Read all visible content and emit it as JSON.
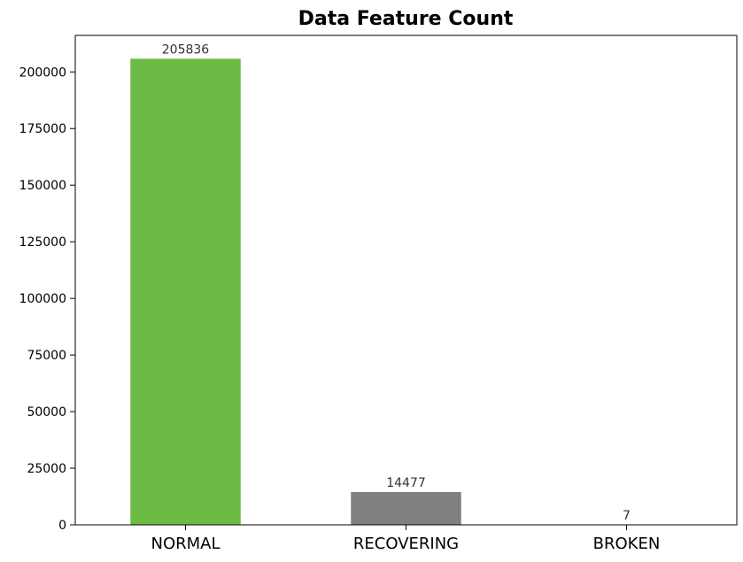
{
  "chart_data": {
    "type": "bar",
    "title": "Data Feature Count",
    "categories": [
      "NORMAL",
      "RECOVERING",
      "BROKEN"
    ],
    "values": [
      205836,
      14477,
      7
    ],
    "data_labels": [
      "205836",
      "14477",
      "7"
    ],
    "colors": [
      "#6cbb44",
      "#808080",
      "#808080"
    ],
    "xlabel": "",
    "ylabel": "",
    "ylim": [
      0,
      216127
    ],
    "yticks": [
      0,
      25000,
      50000,
      75000,
      100000,
      125000,
      150000,
      175000,
      200000
    ],
    "ytick_labels": [
      "0",
      "25000",
      "50000",
      "75000",
      "100000",
      "125000",
      "150000",
      "175000",
      "200000"
    ],
    "grid": false,
    "legend": "none"
  }
}
